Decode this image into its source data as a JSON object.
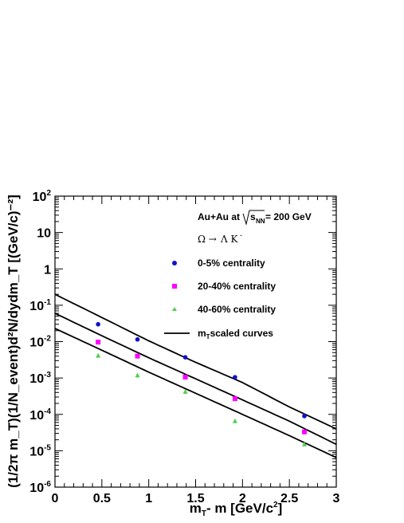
{
  "chart_data": {
    "type": "scatter",
    "xlabel_main": "m",
    "xlabel_sub": "T",
    "xlabel_mid": "- m [GeV/c",
    "xlabel_sup": "2",
    "xlabel_end": "]",
    "ylabel": "(1/2π m_T)(1/N_event)d²N/dydm_T [(GeV/c)⁻²]",
    "xlim": [
      0,
      3
    ],
    "ylim_log10": [
      -6,
      2
    ],
    "log_y": true,
    "x_ticks": [
      "0",
      "0.5",
      "1",
      "1.5",
      "2",
      "2.5",
      "3"
    ],
    "y_ticks": [
      {
        "base": "10",
        "exp": "2"
      },
      {
        "base": "10",
        "exp": ""
      },
      {
        "base": "1",
        "exp": ""
      },
      {
        "base": "10",
        "exp": "-1"
      },
      {
        "base": "10",
        "exp": "-2"
      },
      {
        "base": "10",
        "exp": "-3"
      },
      {
        "base": "10",
        "exp": "-4"
      },
      {
        "base": "10",
        "exp": "-5"
      },
      {
        "base": "10",
        "exp": "-6"
      }
    ],
    "annotation_system": "Au+Au at",
    "annotation_sqrt": "s",
    "annotation_sub": "NN",
    "annotation_energy": " = 200 GeV",
    "annotation_decay_omega": "Ω →",
    "annotation_decay_lambda": "Λ K",
    "annotation_decay_sup": "-",
    "legend": [
      {
        "label": "0-5% centrality",
        "marker": "circle",
        "color": "#1010cc"
      },
      {
        "label": "20-40% centrality",
        "marker": "square",
        "color": "#ff00ff"
      },
      {
        "label": "40-60% centrality",
        "marker": "triangle",
        "color": "#55cc55"
      }
    ],
    "curve_legend_main": "m",
    "curve_legend_sub": "T",
    "curve_legend_rest": "scaled curves",
    "series": [
      {
        "name": "0-5% centrality",
        "color": "#1010cc",
        "marker": "circle",
        "x": [
          0.46,
          0.88,
          1.39,
          1.92,
          2.66
        ],
        "y": [
          0.03,
          0.0115,
          0.0037,
          0.00105,
          9e-05
        ]
      },
      {
        "name": "20-40% centrality",
        "color": "#ff00ff",
        "marker": "square",
        "x": [
          0.46,
          0.88,
          1.39,
          1.92,
          2.66
        ],
        "y": [
          0.0097,
          0.004,
          0.00106,
          0.00027,
          3.3e-05
        ]
      },
      {
        "name": "40-60% centrality",
        "color": "#55cc55",
        "marker": "triangle",
        "x": [
          0.46,
          0.88,
          1.39,
          1.92,
          2.66
        ],
        "y": [
          0.0041,
          0.00118,
          0.00042,
          6.5e-05,
          1.5e-05
        ]
      }
    ],
    "curves": [
      {
        "x": [
          0,
          0.5,
          1,
          1.5,
          2,
          2.5,
          3
        ],
        "y": [
          0.2,
          0.046,
          0.0105,
          0.0027,
          0.00075,
          0.00016,
          4e-05
        ]
      },
      {
        "x": [
          0,
          0.5,
          1,
          1.5,
          2,
          2.5,
          3
        ],
        "y": [
          0.06,
          0.0145,
          0.0036,
          0.00095,
          0.00025,
          6.5e-05,
          1.5e-05
        ]
      },
      {
        "x": [
          0,
          0.5,
          1,
          1.5,
          2,
          2.5,
          3
        ],
        "y": [
          0.023,
          0.0058,
          0.00145,
          0.00038,
          0.0001,
          2.6e-05,
          6.5e-06
        ]
      }
    ]
  }
}
